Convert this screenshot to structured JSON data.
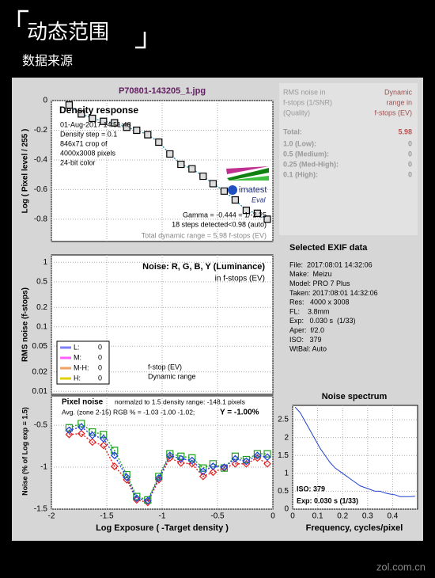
{
  "header": {
    "title": "动态范围",
    "subtitle": "数据来源"
  },
  "window": {
    "filename": "P70801-143205_1.jpg"
  },
  "dr_table": {
    "header_left": [
      "RMS noise in",
      "f-stops (1/SNR)",
      "(Quality)"
    ],
    "header_right": [
      "Dynamic",
      "range in",
      "f-stops (EV)"
    ],
    "rows": [
      [
        "Total:",
        5.98
      ],
      [
        "1.0  (Low):",
        0
      ],
      [
        "0.5  (Medium):",
        0
      ],
      [
        "0.25 (Med-High):",
        0
      ],
      [
        "0.1  (High):",
        0
      ]
    ]
  },
  "exif": {
    "title": "Selected EXIF data",
    "rows": [
      "File:  2017:08:01 14:32:06",
      "Make:  Meizu",
      "Model: PRO 7 Plus",
      "Taken: 2017:08:01 14:32:06",
      "Res:   4000 x 3008",
      "FL:    3.8mm",
      "Exp:   0.030 s  (1/33)",
      "Aper:  f/2.0",
      "ISO:   379",
      "WtBal: Auto"
    ]
  },
  "footer": "zol.com.cn",
  "chart_data": [
    {
      "type": "line",
      "title": "Density response",
      "ylabel": "Log ( Pixel level / 255 )",
      "annotations": [
        "01-Aug-2017 14:51:48",
        "Density step = 0.1",
        "846x71 crop of",
        "4000x3008 pixels",
        "24-bit color"
      ],
      "notes": [
        "Gamma = -0.444 = 1/-2.25",
        "18 steps detected<0.98 (auto)",
        "Total dynamic range = 5.98 f-stops (EV)"
      ],
      "logo": "imatest",
      "logo_sub": "Eval",
      "x": [
        -1.84,
        -1.73,
        -1.63,
        -1.53,
        -1.43,
        -1.32,
        -1.23,
        -1.13,
        -1.03,
        -0.93,
        -0.83,
        -0.73,
        -0.63,
        -0.54,
        -0.44,
        -0.34,
        -0.24,
        -0.14,
        -0.05
      ],
      "series": [
        {
          "color": "#2a8fb0",
          "marker": "square",
          "marker_fill": "#dddddd",
          "values": [
            -0.03,
            -0.09,
            -0.12,
            -0.14,
            -0.15,
            -0.18,
            -0.2,
            -0.23,
            -0.28,
            -0.36,
            -0.43,
            -0.46,
            -0.51,
            -0.56,
            -0.61,
            -0.67,
            -0.74,
            -0.76,
            -0.8
          ]
        }
      ],
      "xlim": [
        -2,
        0
      ],
      "ylim": [
        -0.95,
        0
      ],
      "yticks": [
        0,
        -0.2,
        -0.4,
        -0.6,
        -0.8
      ],
      "grid": true
    },
    {
      "type": "line",
      "title": "Noise: R, G, B, Y (Luminance)",
      "subtitle": "in f-stops (EV)",
      "ylabel": "RMS noise (f-stops)",
      "notes": [
        "f-stop (EV)",
        "Dynamic range"
      ],
      "legend": [
        {
          "label": "L:",
          "value": 0,
          "color": "#8080ff"
        },
        {
          "label": "M:",
          "value": 0,
          "color": "#ff60ff"
        },
        {
          "label": "M-H:",
          "value": 0,
          "color": "#f0a060"
        },
        {
          "label": "H:",
          "value": 0,
          "color": "#e0d000"
        }
      ],
      "log_y": true,
      "series": [],
      "xlim": [
        -2,
        0
      ],
      "ylim": [
        0.009,
        1.3
      ],
      "yticks": [
        0.01,
        0.02,
        0.05,
        0.1,
        0.2,
        0.5,
        1
      ],
      "grid": true
    },
    {
      "type": "line",
      "title": "Pixel noise",
      "subtitle": "normalzd to 1.5 density range: -148.1 pixels",
      "annotation": "Avg. (zone 2-15) RGB % = -1.03 -1.00 -1.02;",
      "annotation_bold": "Y = -1.00%",
      "ylabel": "Noise (% of Log exp = 1.5)",
      "xlabel": "Log Exposure ( -Target density )",
      "x": [
        -1.84,
        -1.73,
        -1.63,
        -1.53,
        -1.43,
        -1.32,
        -1.23,
        -1.13,
        -1.03,
        -0.93,
        -0.83,
        -0.73,
        -0.63,
        -0.54,
        -0.44,
        -0.34,
        -0.24,
        -0.14,
        -0.05
      ],
      "series": [
        {
          "color": "#e02020",
          "marker": "diamond",
          "marker_fill": "none",
          "values": [
            -0.61,
            -0.6,
            -0.7,
            -0.74,
            -0.99,
            -1.15,
            -1.39,
            -1.42,
            -1.15,
            -0.89,
            -0.95,
            -0.96,
            -1.11,
            -1.06,
            -1.01,
            -0.96,
            -0.96,
            -0.89,
            -0.96
          ]
        },
        {
          "color": "#20a020",
          "marker": "square",
          "marker_fill": "none",
          "values": [
            -0.53,
            -0.48,
            -0.58,
            -0.61,
            -0.8,
            -1.09,
            -1.35,
            -1.39,
            -1.11,
            -0.84,
            -0.87,
            -0.89,
            -1.01,
            -0.96,
            -1.01,
            -0.87,
            -0.91,
            -0.84,
            -0.84
          ]
        },
        {
          "color": "#2040e0",
          "marker": "diamond",
          "marker_fill": "none",
          "values": [
            -0.56,
            -0.52,
            -0.62,
            -0.66,
            -0.86,
            -1.12,
            -1.37,
            -1.4,
            -1.13,
            -0.86,
            -0.9,
            -0.92,
            -1.05,
            -0.99,
            -1.0,
            -0.9,
            -0.93,
            -0.86,
            -0.88
          ]
        }
      ],
      "xlim": [
        -2,
        0
      ],
      "ylim": [
        -1.5,
        -0.15
      ],
      "xticks": [
        -2,
        -1.5,
        -1,
        -0.5,
        0
      ],
      "yticks": [
        -0.5,
        -1,
        -1.5
      ],
      "grid": true
    },
    {
      "type": "line",
      "title": "Noise spectrum",
      "xlabel": "Frequency, cycles/pixel",
      "annotations": [
        "ISO:  379",
        "Exp:  0.030 s  (1/33)"
      ],
      "x": [
        0.01,
        0.03,
        0.05,
        0.07,
        0.09,
        0.11,
        0.13,
        0.15,
        0.17,
        0.19,
        0.21,
        0.23,
        0.25,
        0.27,
        0.29,
        0.31,
        0.33,
        0.35,
        0.37,
        0.39,
        0.41,
        0.43,
        0.45,
        0.47,
        0.49
      ],
      "series": [
        {
          "color": "#2040d0",
          "values": [
            2.85,
            2.7,
            2.45,
            2.2,
            1.95,
            1.7,
            1.5,
            1.3,
            1.15,
            1.05,
            0.95,
            0.85,
            0.75,
            0.65,
            0.6,
            0.55,
            0.5,
            0.5,
            0.45,
            0.42,
            0.4,
            0.35,
            0.35,
            0.35,
            0.36
          ]
        }
      ],
      "xlim": [
        0,
        0.5
      ],
      "ylim": [
        0,
        2.9
      ],
      "xticks": [
        0,
        0.1,
        0.2,
        0.3,
        0.4
      ],
      "yticks": [
        0,
        0.5,
        1,
        1.5,
        2,
        2.5
      ],
      "grid": true
    }
  ]
}
